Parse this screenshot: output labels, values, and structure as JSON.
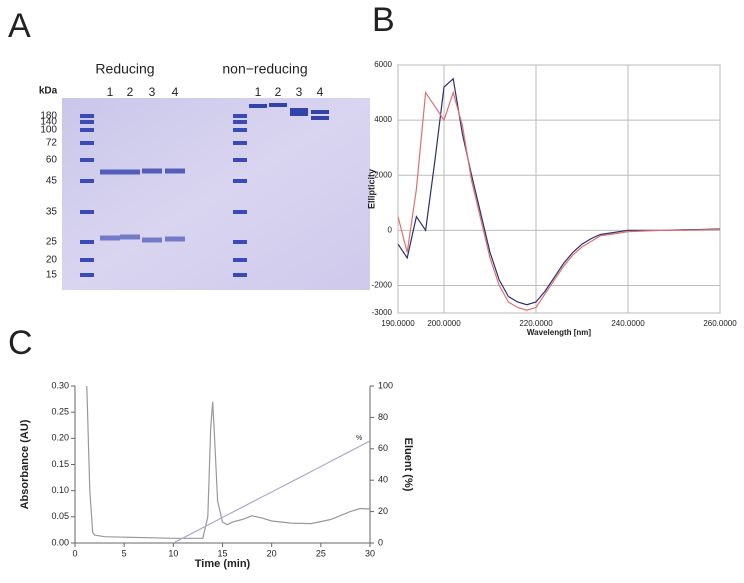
{
  "panels": {
    "a": "A",
    "b": "B",
    "c": "C"
  },
  "gel": {
    "groups": [
      "Reducing",
      "non−reducing"
    ],
    "unit": "kDa",
    "markers": [
      "180",
      "140",
      "100",
      "72",
      "60",
      "45",
      "35",
      "25",
      "20",
      "15"
    ],
    "lanes": [
      "1",
      "2",
      "3",
      "4",
      "1",
      "2",
      "3",
      "4"
    ]
  },
  "chart_data": [
    {
      "type": "line",
      "xlabel": "Wavelength [nm]",
      "ylabel": "Ellipticity",
      "x": [
        190,
        192,
        194,
        196,
        198,
        200,
        202,
        204,
        206,
        208,
        210,
        212,
        214,
        216,
        218,
        220,
        222,
        224,
        226,
        228,
        230,
        232,
        234,
        236,
        238,
        240,
        244,
        248,
        252,
        256,
        260
      ],
      "series": [
        {
          "color": "#2b2f6e",
          "values": [
            -500,
            -1000,
            500,
            0,
            2500,
            5200,
            5500,
            3500,
            2000,
            600,
            -800,
            -1800,
            -2400,
            -2600,
            -2700,
            -2600,
            -2200,
            -1700,
            -1200,
            -800,
            -500,
            -300,
            -150,
            -100,
            -50,
            0,
            0,
            0,
            20,
            30,
            50
          ]
        },
        {
          "color": "#e07070",
          "values": [
            500,
            -800,
            1500,
            5000,
            4500,
            4000,
            5000,
            3800,
            1800,
            400,
            -1000,
            -2000,
            -2600,
            -2800,
            -2900,
            -2800,
            -2300,
            -1800,
            -1300,
            -900,
            -600,
            -400,
            -200,
            -150,
            -100,
            -50,
            -20,
            0,
            0,
            20,
            30
          ]
        }
      ],
      "xlim": [
        190,
        260
      ],
      "xticks": [
        {
          "value": 190,
          "label": "190.0000"
        },
        {
          "value": 200,
          "label": "200.0000"
        },
        {
          "value": 220,
          "label": "220.0000"
        },
        {
          "value": 240,
          "label": "240.0000"
        },
        {
          "value": 260,
          "label": "260.0000"
        }
      ],
      "ylim": [
        -3000,
        6000
      ],
      "yticks": [
        -3000,
        -2000,
        0,
        2000,
        4000,
        6000
      ],
      "grid": true
    },
    {
      "type": "line",
      "xlabel": "Time (min)",
      "ylabel": "Absorbance (AU)",
      "y2label": "Eluent (%)",
      "annotation": "%",
      "x": [
        1.2,
        1.5,
        1.8,
        2,
        3,
        5,
        8,
        10,
        12,
        13,
        13.5,
        13.8,
        14,
        14.2,
        14.5,
        15,
        15.5,
        16,
        17,
        18,
        19,
        20,
        22,
        24,
        26,
        28,
        29,
        30
      ],
      "series": [
        {
          "color": "#999999",
          "values": [
            0.3,
            0.1,
            0.02,
            0.015,
            0.012,
            0.011,
            0.01,
            0.009,
            0.009,
            0.009,
            0.05,
            0.22,
            0.27,
            0.2,
            0.08,
            0.04,
            0.035,
            0.04,
            0.045,
            0.052,
            0.048,
            0.042,
            0.038,
            0.037,
            0.045,
            0.06,
            0.066,
            0.065
          ]
        },
        {
          "color": "#aaaacc",
          "axis": "y2",
          "values": [
            null,
            null,
            null,
            null,
            null,
            null,
            null,
            0,
            6.5,
            9.75,
            11.4,
            12.4,
            13,
            13.7,
            14.6,
            16.3,
            17.9,
            19.5,
            22.8,
            26,
            29.3,
            32.5,
            39,
            45.5,
            52,
            58.5,
            61.8,
            65
          ]
        }
      ],
      "xlim": [
        0,
        30
      ],
      "xticks": [
        0,
        5,
        10,
        15,
        20,
        25,
        30
      ],
      "ylim": [
        0,
        0.3
      ],
      "yticks": [
        {
          "value": 0,
          "label": "0.00"
        },
        {
          "value": 0.05,
          "label": "0.05"
        },
        {
          "value": 0.1,
          "label": "0.10"
        },
        {
          "value": 0.15,
          "label": "0.15"
        },
        {
          "value": 0.2,
          "label": "0.20"
        },
        {
          "value": 0.25,
          "label": "0.25"
        },
        {
          "value": 0.3,
          "label": "0.30"
        }
      ],
      "y2lim": [
        0,
        100
      ],
      "y2ticks": [
        0,
        20,
        40,
        60,
        80,
        100
      ],
      "grid": false
    }
  ]
}
